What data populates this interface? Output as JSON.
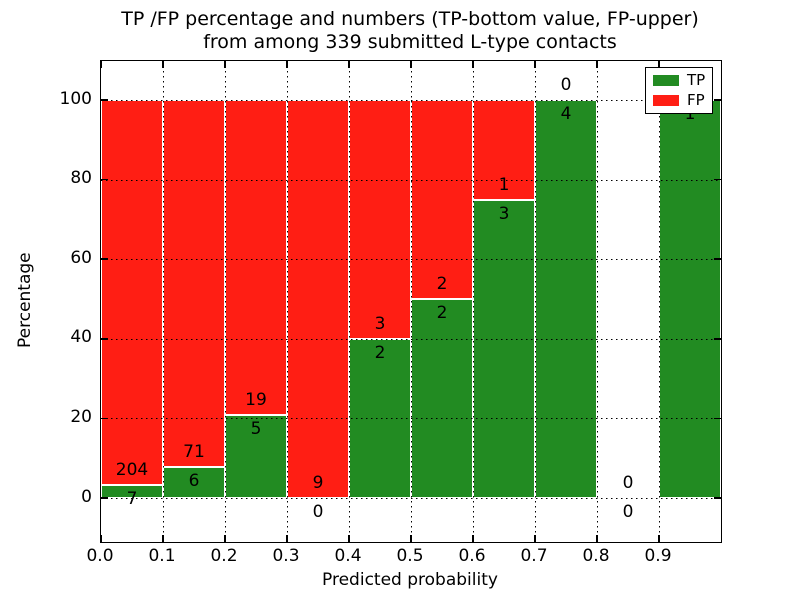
{
  "chart_data": {
    "type": "bar",
    "subtype": "stacked-percentage",
    "title_line1": "TP /FP percentage and numbers (TP-bottom value, FP-upper)",
    "title_line2": "from among 339 submitted L-type contacts",
    "xlabel": "Predicted probability",
    "ylabel": "Percentage",
    "x_tick_labels": [
      "0.0",
      "0.1",
      "0.2",
      "0.3",
      "0.4",
      "0.5",
      "0.6",
      "0.7",
      "0.8",
      "0.9"
    ],
    "y_tick_labels": [
      "0",
      "20",
      "40",
      "60",
      "80",
      "100"
    ],
    "y_tick_values": [
      0,
      20,
      40,
      60,
      80,
      100
    ],
    "xlim": [
      0.0,
      1.0
    ],
    "ylim": [
      -11,
      110
    ],
    "grid": "dotted",
    "grid_on": true,
    "categories": [
      "0.0-0.1",
      "0.1-0.2",
      "0.2-0.3",
      "0.3-0.4",
      "0.4-0.5",
      "0.5-0.6",
      "0.6-0.7",
      "0.7-0.8",
      "0.8-0.9",
      "0.9-1.0"
    ],
    "series": [
      {
        "name": "TP",
        "color": "#228B22",
        "values": [
          7,
          6,
          5,
          0,
          2,
          2,
          3,
          4,
          0,
          1
        ]
      },
      {
        "name": "FP",
        "color": "#FF1E14",
        "values": [
          204,
          71,
          19,
          9,
          3,
          2,
          1,
          0,
          0,
          0
        ]
      }
    ],
    "tp_percent": [
      3.3,
      7.8,
      20.8,
      0.0,
      40.0,
      50.0,
      75.0,
      100.0,
      null,
      100.0
    ],
    "total_contacts": 339,
    "legend": [
      {
        "label": "TP",
        "color": "#228B22"
      },
      {
        "label": "FP",
        "color": "#FF1E14"
      }
    ],
    "legend_position": "upper right"
  }
}
